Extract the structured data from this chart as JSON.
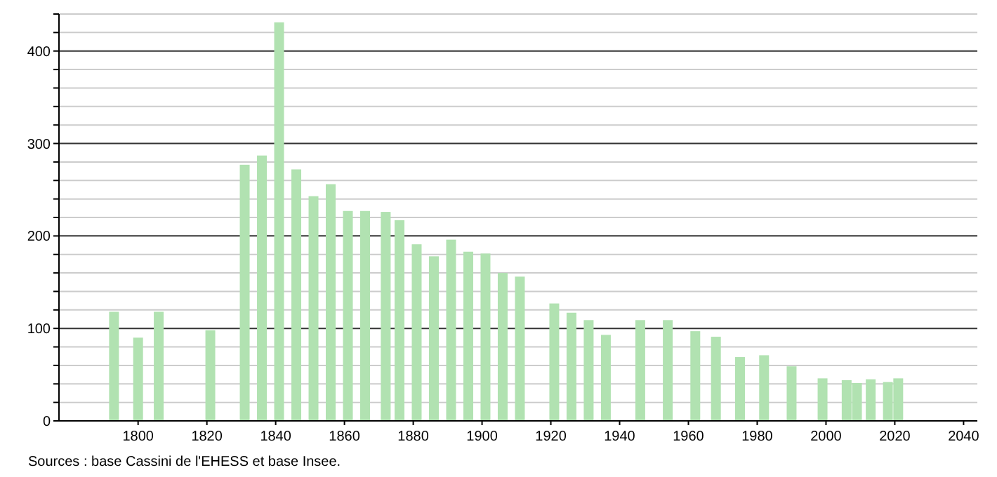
{
  "chart_data": {
    "type": "bar",
    "x": [
      1793,
      1800,
      1806,
      1821,
      1831,
      1836,
      1841,
      1846,
      1851,
      1856,
      1861,
      1866,
      1872,
      1876,
      1881,
      1886,
      1891,
      1896,
      1901,
      1906,
      1911,
      1921,
      1926,
      1931,
      1936,
      1946,
      1954,
      1962,
      1968,
      1975,
      1982,
      1990,
      1999,
      2006,
      2009,
      2013,
      2018,
      2021
    ],
    "values": [
      118,
      90,
      118,
      98,
      277,
      287,
      431,
      272,
      243,
      256,
      227,
      227,
      226,
      217,
      191,
      178,
      196,
      183,
      181,
      160,
      156,
      127,
      117,
      109,
      93,
      109,
      109,
      97,
      91,
      69,
      71,
      59,
      46,
      44,
      41,
      45,
      42,
      46
    ],
    "color": "#b1e2b1",
    "xlim": [
      1777,
      2044
    ],
    "xticks": [
      1800,
      1820,
      1840,
      1860,
      1880,
      1900,
      1920,
      1940,
      1960,
      1980,
      2000,
      2020,
      2040
    ],
    "ylim": [
      0,
      440
    ],
    "yticks": [
      0,
      {
        "value": 20,
        "label": null
      },
      {
        "value": 40,
        "label": null
      },
      {
        "value": 60,
        "label": null
      },
      {
        "value": 80,
        "label": null
      },
      100,
      {
        "value": 120,
        "label": null
      },
      {
        "value": 140,
        "label": null
      },
      {
        "value": 160,
        "label": null
      },
      {
        "value": 180,
        "label": null
      },
      200,
      {
        "value": 220,
        "label": null
      },
      {
        "value": 240,
        "label": null
      },
      {
        "value": 260,
        "label": null
      },
      {
        "value": 280,
        "label": null
      },
      300,
      {
        "value": 320,
        "label": null
      },
      {
        "value": 340,
        "label": null
      },
      {
        "value": 360,
        "label": null
      },
      {
        "value": 380,
        "label": null
      },
      400,
      {
        "value": 420,
        "label": null
      },
      {
        "value": 440,
        "label": null
      }
    ],
    "grid": true,
    "annotations": [
      "Sources : base Cassini de l'EHESS et base Insee."
    ]
  }
}
